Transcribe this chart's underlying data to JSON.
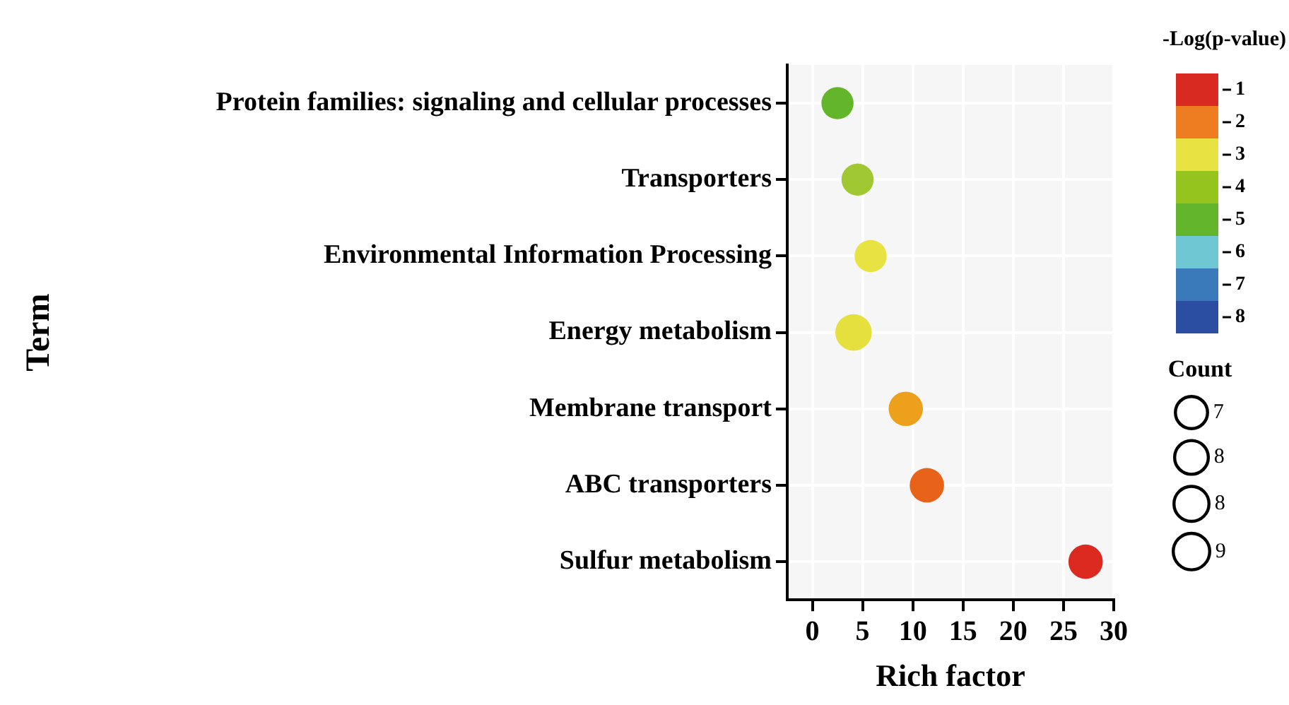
{
  "chart_data": {
    "type": "bubble",
    "orientation": "horizontal",
    "xlabel": "Rich factor",
    "ylabel": "Term",
    "legend_title": "Count",
    "clabel": "-Log(p-value)",
    "categories": [
      "Protein families: signaling and cellular processes",
      "Transporters",
      "Environmental Information Processing",
      "Energy metabolism",
      "Membrane transport",
      "ABC transporters",
      "Sulfur metabolism"
    ],
    "values": [
      2.5,
      4.5,
      5.8,
      4.1,
      9.3,
      11.4,
      27.2
    ],
    "sizes": [
      7,
      7,
      7,
      9,
      8,
      8,
      8
    ],
    "colors": [
      "#63b52b",
      "#a0c832",
      "#e8e342",
      "#e6e03e",
      "#eca01c",
      "#e8621a",
      "#dc2a20"
    ],
    "size_legend": [
      7,
      {
        "value": 7.7,
        "label": "8"
      },
      {
        "value": 8.3,
        "label": "8"
      },
      9
    ],
    "clim": [
      0.5,
      8.5
    ],
    "cticks": [
      1,
      2,
      3,
      4,
      5,
      6,
      7,
      8
    ],
    "xlim": [
      -2.5,
      30
    ],
    "xticks": [
      0,
      5,
      10,
      15,
      20,
      25,
      30
    ],
    "grid": true
  }
}
